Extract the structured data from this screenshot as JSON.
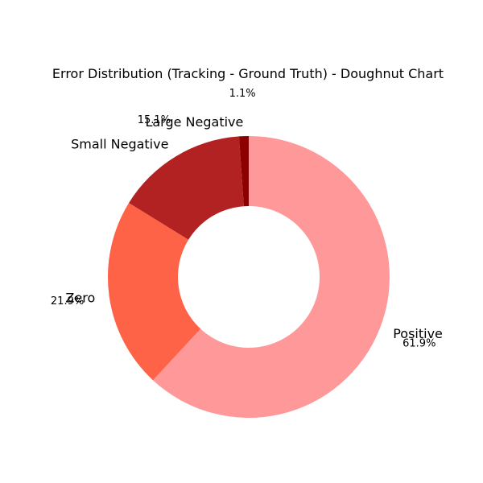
{
  "chart_data": {
    "type": "pie",
    "subtype": "doughnut",
    "title": "Error Distribution (Tracking - Ground Truth) - Doughnut Chart",
    "categories": [
      "Positive",
      "Zero",
      "Small Negative",
      "Large Negative"
    ],
    "values": [
      61.9,
      21.9,
      15.1,
      1.1
    ],
    "percent_labels": [
      "61.9%",
      "21.9%",
      "15.1%",
      "1.1%"
    ],
    "colors": [
      "#ff9999",
      "#ff6347",
      "#b22222",
      "#8b0000"
    ],
    "start_angle_deg": 90,
    "direction": "clockwise",
    "legend": "none"
  }
}
